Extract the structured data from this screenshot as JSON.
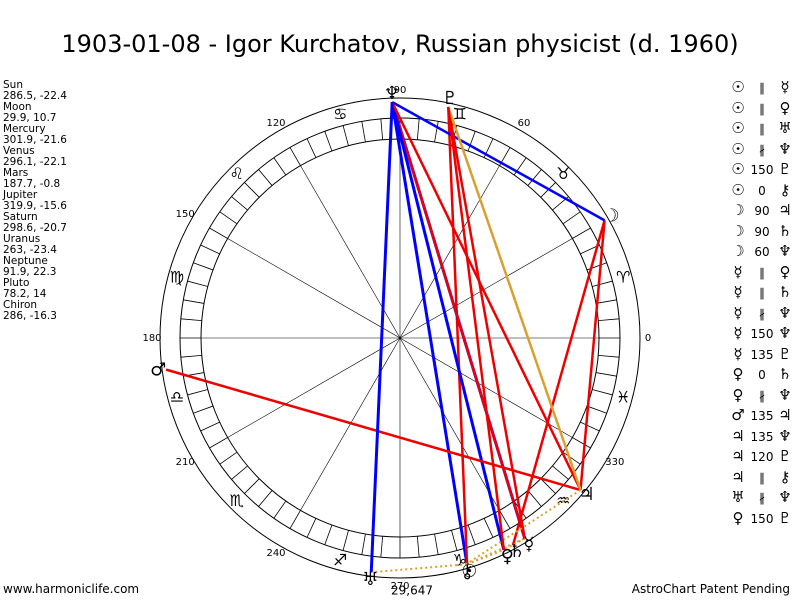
{
  "title": "1903-01-08 - Igor Kurchatov, Russian physicist (d. 1960)",
  "planets": [
    {
      "name": "Sun",
      "glyph": "☉",
      "lon": 286.5,
      "lat": -22.4
    },
    {
      "name": "Moon",
      "glyph": "☽",
      "lon": 29.9,
      "lat": 10.7
    },
    {
      "name": "Mercury",
      "glyph": "☿",
      "lon": 301.9,
      "lat": -21.6
    },
    {
      "name": "Venus",
      "glyph": "♀",
      "lon": 296.1,
      "lat": -22.1
    },
    {
      "name": "Mars",
      "glyph": "♂",
      "lon": 187.7,
      "lat": -0.8
    },
    {
      "name": "Jupiter",
      "glyph": "♃",
      "lon": 319.9,
      "lat": -15.6
    },
    {
      "name": "Saturn",
      "glyph": "♄",
      "lon": 298.6,
      "lat": -20.7
    },
    {
      "name": "Uranus",
      "glyph": "♅",
      "lon": 263.0,
      "lat": -23.4
    },
    {
      "name": "Neptune",
      "glyph": "♆",
      "lon": 91.9,
      "lat": 22.3
    },
    {
      "name": "Pluto",
      "glyph": "♇",
      "lon": 78.2,
      "lat": 14.0
    },
    {
      "name": "Chiron",
      "glyph": "⚷",
      "lon": 286.0,
      "lat": -16.3
    }
  ],
  "signs": [
    "♈",
    "♉",
    "♊",
    "♋",
    "♌",
    "♍",
    "♎",
    "♏",
    "♐",
    "♑",
    "♒",
    "♓"
  ],
  "degree_labels": [
    0,
    60,
    90,
    120,
    150,
    180,
    210,
    240,
    270,
    330
  ],
  "aspects": [
    {
      "p1": "☉",
      "aspect": "∥",
      "p2": "☿"
    },
    {
      "p1": "☉",
      "aspect": "∥",
      "p2": "♀"
    },
    {
      "p1": "☉",
      "aspect": "∥",
      "p2": "♅"
    },
    {
      "p1": "☉",
      "aspect": "∦",
      "p2": "♆"
    },
    {
      "p1": "☉",
      "aspect": "150",
      "p2": "♇"
    },
    {
      "p1": "☉",
      "aspect": "0",
      "p2": "⚷"
    },
    {
      "p1": "☽",
      "aspect": "90",
      "p2": "♃"
    },
    {
      "p1": "☽",
      "aspect": "90",
      "p2": "♄"
    },
    {
      "p1": "☽",
      "aspect": "60",
      "p2": "♆"
    },
    {
      "p1": "☿",
      "aspect": "∥",
      "p2": "♀"
    },
    {
      "p1": "☿",
      "aspect": "∥",
      "p2": "♄"
    },
    {
      "p1": "☿",
      "aspect": "∦",
      "p2": "♆"
    },
    {
      "p1": "☿",
      "aspect": "150",
      "p2": "♆"
    },
    {
      "p1": "☿",
      "aspect": "135",
      "p2": "♇"
    },
    {
      "p1": "♀",
      "aspect": "0",
      "p2": "♄"
    },
    {
      "p1": "♀",
      "aspect": "∦",
      "p2": "♆"
    },
    {
      "p1": "♂",
      "aspect": "135",
      "p2": "♃"
    },
    {
      "p1": "♃",
      "aspect": "135",
      "p2": "♆"
    },
    {
      "p1": "♃",
      "aspect": "120",
      "p2": "♇"
    },
    {
      "p1": "♃",
      "aspect": "∥",
      "p2": "⚷"
    },
    {
      "p1": "♅",
      "aspect": "∦",
      "p2": "♆"
    },
    {
      "p1": "♀",
      "aspect": "150",
      "p2": "♇"
    }
  ],
  "center_label": "29,647",
  "footer_left": "www.harmoniclife.com",
  "footer_right": "AstroChart Patent Pending"
}
